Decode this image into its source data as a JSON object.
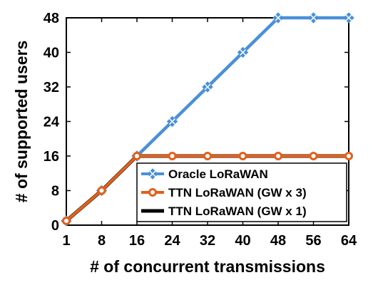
{
  "chart_data": {
    "type": "line",
    "title": "",
    "xlabel": "# of concurrent transmissions",
    "ylabel": "# of supported users",
    "x": [
      1,
      8,
      16,
      24,
      32,
      40,
      48,
      56,
      64
    ],
    "xticks": [
      "1",
      "8",
      "16",
      "24",
      "32",
      "40",
      "48",
      "56",
      "64"
    ],
    "yticks": [
      "0",
      "8",
      "16",
      "24",
      "32",
      "40",
      "48"
    ],
    "xlim": [
      1,
      64
    ],
    "ylim": [
      0,
      48
    ],
    "grid": false,
    "legend_position": "bottom-right",
    "series": [
      {
        "name": "Oracle LoRaWAN",
        "color": "#4A90D9",
        "marker": "x-diamond",
        "x": [
          1,
          8,
          16,
          24,
          32,
          40,
          48,
          56,
          64
        ],
        "values": [
          1,
          8,
          16,
          24,
          32,
          40,
          48,
          48,
          48
        ]
      },
      {
        "name": "TTN LoRaWAN (GW x 3)",
        "color": "#E2601A",
        "marker": "circle",
        "x": [
          1,
          8,
          16,
          24,
          32,
          40,
          48,
          56,
          64
        ],
        "values": [
          1,
          8,
          16,
          16,
          16,
          16,
          16,
          16,
          16
        ]
      },
      {
        "name": "TTN LoRaWAN (GW x 1)",
        "color": "#000000",
        "marker": "none",
        "x": [
          1,
          8,
          16,
          24,
          32,
          40,
          48,
          56,
          64
        ],
        "values": [
          1,
          8,
          16,
          16,
          16,
          16,
          16,
          16,
          16
        ]
      }
    ]
  }
}
